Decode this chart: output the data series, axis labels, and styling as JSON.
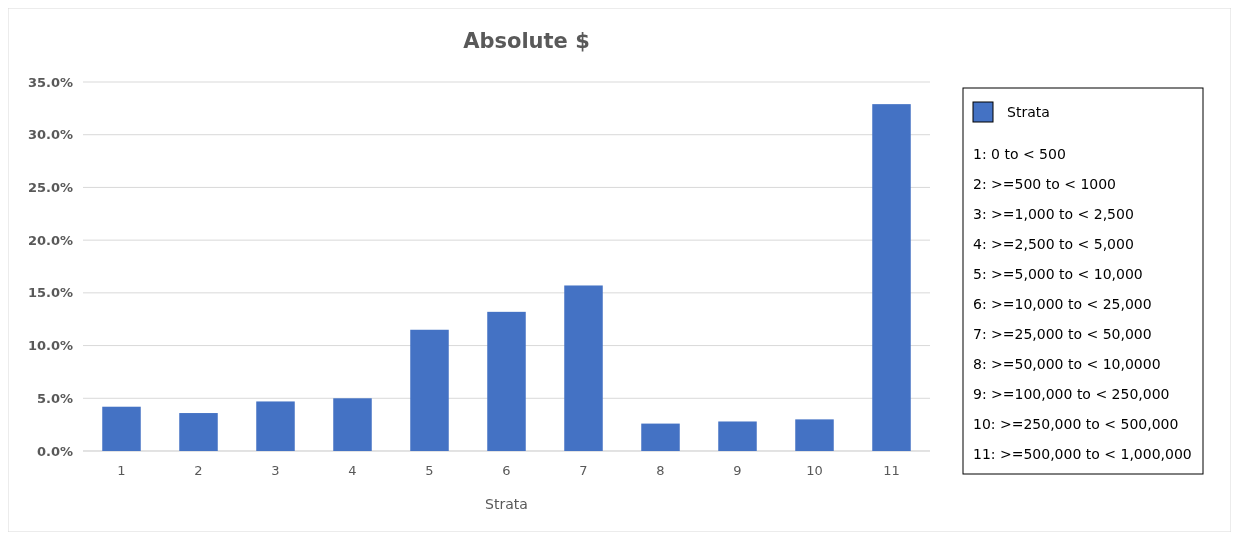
{
  "chart_data": {
    "type": "bar",
    "title": "Absolute $",
    "xlabel": "Strata",
    "categories": [
      "1",
      "2",
      "3",
      "4",
      "5",
      "6",
      "7",
      "8",
      "9",
      "10",
      "11"
    ],
    "series": [
      {
        "name": "Strata",
        "color": "#4472c4",
        "values": [
          4.2,
          3.6,
          4.7,
          5.0,
          11.5,
          13.2,
          15.7,
          2.6,
          2.8,
          3.0,
          32.9
        ]
      }
    ],
    "ylim": [
      0,
      35
    ],
    "yticks": [
      {
        "value": 0,
        "label": "0.0%"
      },
      {
        "value": 5,
        "label": "5.0%"
      },
      {
        "value": 10,
        "label": "10.0%"
      },
      {
        "value": 15,
        "label": "15.0%"
      },
      {
        "value": 20,
        "label": "20.0%"
      },
      {
        "value": 25,
        "label": "25.0%"
      },
      {
        "value": 30,
        "label": "30.0%"
      },
      {
        "value": 35,
        "label": "35.0%"
      }
    ],
    "grid": "y",
    "legend": "right",
    "annotations": [
      "1: 0 to < 500",
      "2: >=500 to < 1000",
      "3: >=1,000 to < 2,500",
      "4: >=2,500 to < 5,000",
      "5: >=5,000 to < 10,000",
      "6: >=10,000 to < 25,000",
      "7: >=25,000 to < 50,000",
      "8: >=50,000 to < 10,0000",
      "9: >=100,000 to < 250,000",
      "10: >=250,000 to < 500,000",
      "11: >=500,000 to < 1,000,000"
    ]
  }
}
